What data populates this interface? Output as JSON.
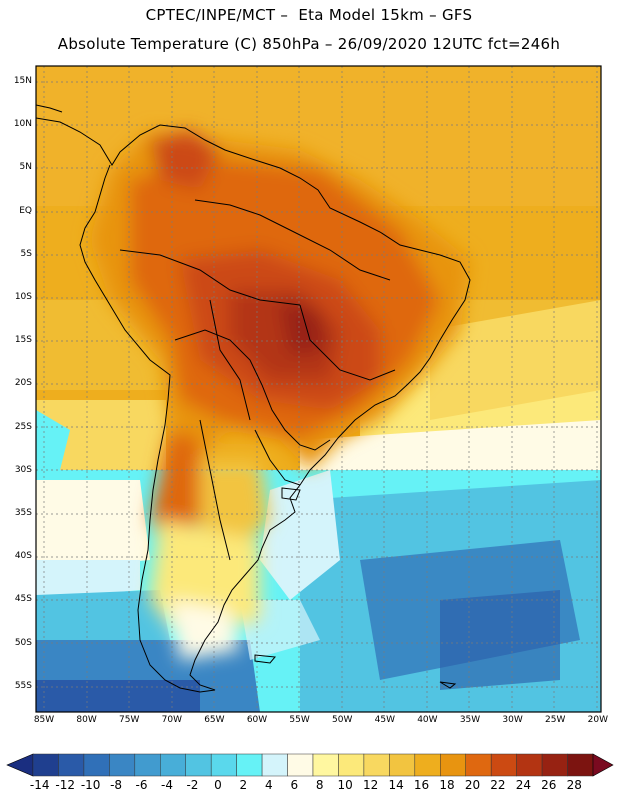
{
  "title_line1": "CPTEC/INPE/MCT –  Eta Model 15km – GFS",
  "title_line2": "Absolute Temperature (C) 850hPa – 26/09/2020 12UTC fct=246h",
  "latitudes": [
    "15N",
    "10N",
    "5N",
    "EQ",
    "5S",
    "10S",
    "15S",
    "20S",
    "25S",
    "30S",
    "35S",
    "40S",
    "45S",
    "50S",
    "55S"
  ],
  "longitudes": [
    "85W",
    "80W",
    "75W",
    "70W",
    "65W",
    "60W",
    "55W",
    "50W",
    "45W",
    "40W",
    "35W",
    "30W",
    "25W",
    "20W"
  ],
  "colorbar": {
    "labels": [
      "-14",
      "-12",
      "-10",
      "-8",
      "-6",
      "-4",
      "-2",
      "0",
      "2",
      "4",
      "6",
      "8",
      "10",
      "12",
      "14",
      "16",
      "18",
      "20",
      "22",
      "24",
      "26",
      "28"
    ],
    "colors": [
      "#1f3f8f",
      "#2a5aa8",
      "#3070b8",
      "#3a86c4",
      "#419bcf",
      "#48aed8",
      "#52c4e2",
      "#5ad8ec",
      "#66f2f6",
      "#d4f4fb",
      "#fffbe6",
      "#fff7a0",
      "#fce97a",
      "#f8d860",
      "#f2c440",
      "#eeae1e",
      "#e89410",
      "#df6810",
      "#cc4a12",
      "#b33412",
      "#972212",
      "#7c1410"
    ],
    "low_color": "#1a2e80",
    "high_color": "#7a0a20"
  }
}
